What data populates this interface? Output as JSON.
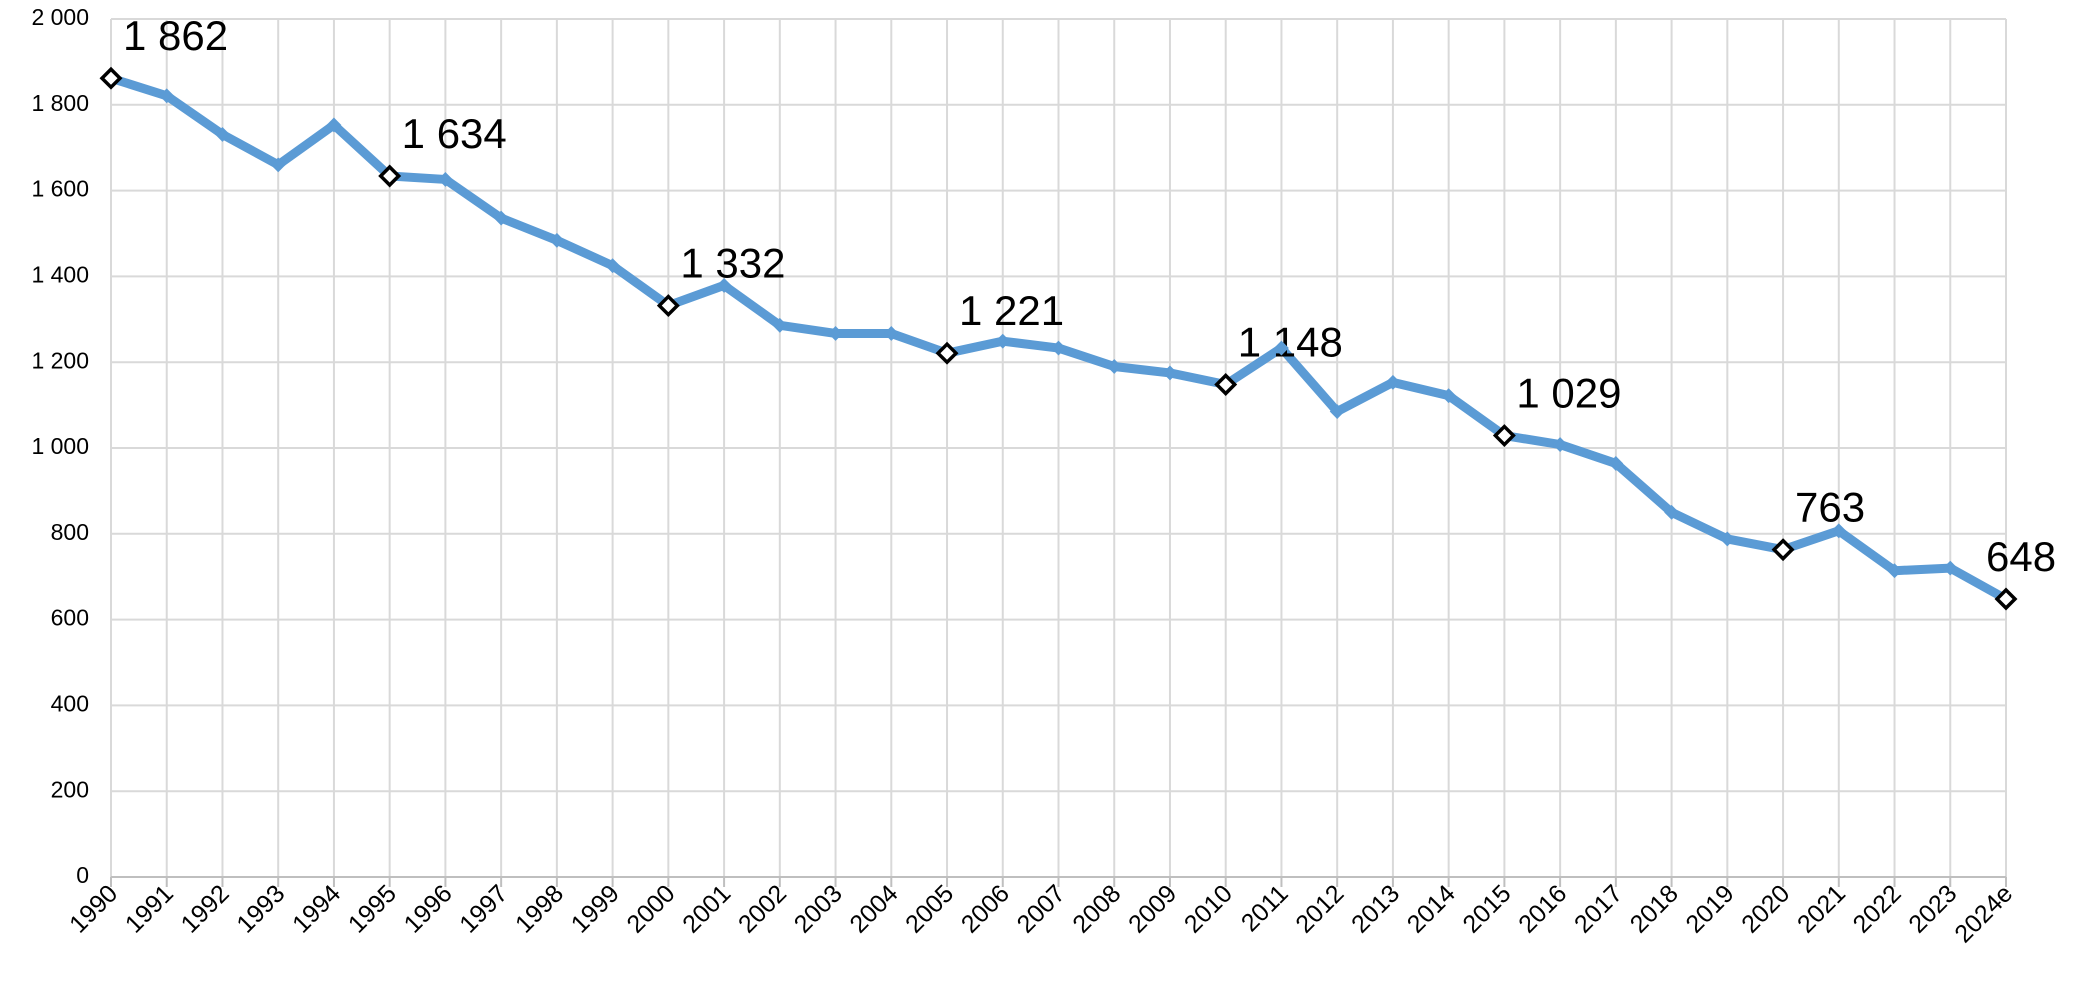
{
  "chart_data": {
    "type": "line",
    "categories": [
      "1990",
      "1991",
      "1992",
      "1993",
      "1994",
      "1995",
      "1996",
      "1997",
      "1998",
      "1999",
      "2000",
      "2001",
      "2002",
      "2003",
      "2004",
      "2005",
      "2006",
      "2007",
      "2008",
      "2009",
      "2010",
      "2011",
      "2012",
      "2013",
      "2014",
      "2015",
      "2016",
      "2017",
      "2018",
      "2019",
      "2020",
      "2021",
      "2022",
      "2023",
      "2024e"
    ],
    "series": [
      {
        "color": "#5b9bd5",
        "values": [
          1862,
          1821,
          1731,
          1660,
          1753,
          1634,
          1626,
          1536,
          1484,
          1425,
          1332,
          1379,
          1286,
          1267,
          1267,
          1221,
          1249,
          1233,
          1190,
          1175,
          1148,
          1233,
          1085,
          1153,
          1122,
          1029,
          1008,
          964,
          850,
          788,
          763,
          807,
          714,
          720,
          648
        ],
        "value_labels": [
          "1 862",
          null,
          null,
          null,
          null,
          "1 634",
          null,
          null,
          null,
          null,
          "1 332",
          null,
          null,
          null,
          null,
          "1 221",
          null,
          null,
          null,
          null,
          "1 148",
          null,
          null,
          null,
          null,
          "1 029",
          null,
          null,
          null,
          null,
          "763",
          null,
          null,
          null,
          "648"
        ]
      }
    ],
    "ylim": [
      0,
      2000
    ],
    "yticks": [
      0,
      200,
      400,
      600,
      800,
      {
        "value": 1000,
        "label": "1 000"
      },
      {
        "value": 1200,
        "label": "1 200"
      },
      {
        "value": 1400,
        "label": "1 400"
      },
      {
        "value": 1600,
        "label": "1 600"
      },
      {
        "value": 1800,
        "label": "1 800"
      },
      {
        "value": 2000,
        "label": "2 000"
      }
    ],
    "grid": true
  }
}
